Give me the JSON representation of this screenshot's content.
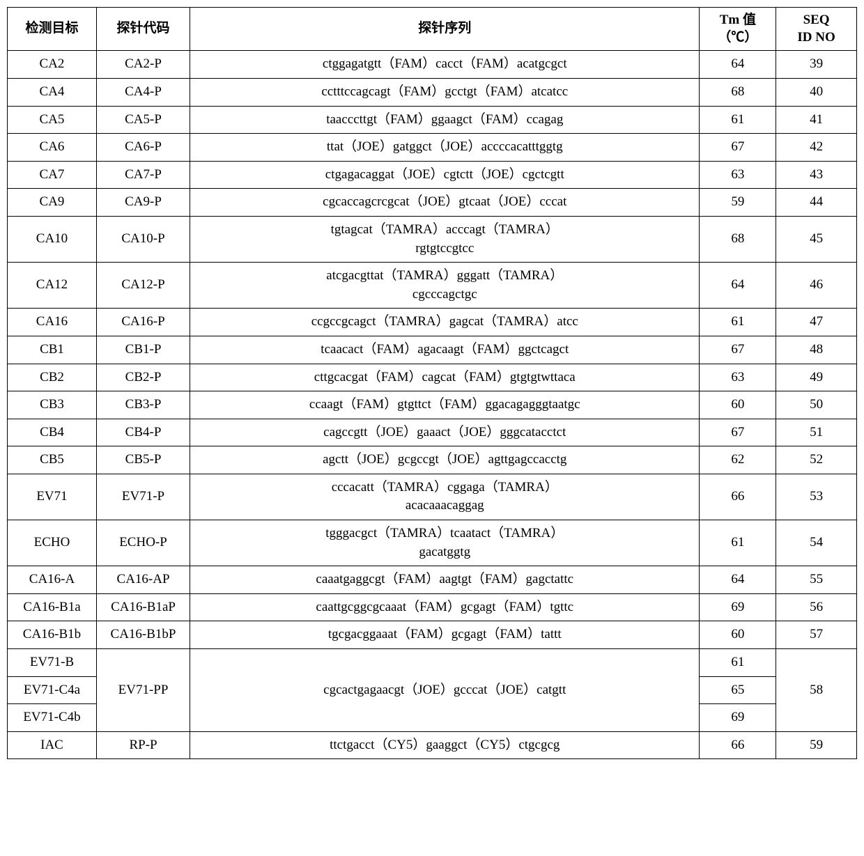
{
  "headers": {
    "target": "检测目标",
    "code": "探针代码",
    "sequence": "探针序列",
    "tm_line1": "Tm 值",
    "tm_line2": "（℃）",
    "seqid_line1": "SEQ",
    "seqid_line2": "ID NO"
  },
  "rows": [
    {
      "target": "CA2",
      "code": "CA2-P",
      "sequence": "ctggagatgtt（FAM）cacct（FAM）acatgcgct",
      "tm": "64",
      "seqid": "39"
    },
    {
      "target": "CA4",
      "code": "CA4-P",
      "sequence": "cctttccagcagt（FAM）gcctgt（FAM）atcatcc",
      "tm": "68",
      "seqid": "40"
    },
    {
      "target": "CA5",
      "code": "CA5-P",
      "sequence": "taacccttgt（FAM）ggaagct（FAM）ccagag",
      "tm": "61",
      "seqid": "41"
    },
    {
      "target": "CA6",
      "code": "CA6-P",
      "sequence": "ttat（JOE）gatggct（JOE）accccacatttggtg",
      "tm": "67",
      "seqid": "42"
    },
    {
      "target": "CA7",
      "code": "CA7-P",
      "sequence": "ctgagacaggat（JOE）cgtctt（JOE）cgctcgtt",
      "tm": "63",
      "seqid": "43"
    },
    {
      "target": "CA9",
      "code": "CA9-P",
      "sequence": "cgcaccagcrcgcat（JOE）gtcaat（JOE）cccat",
      "tm": "59",
      "seqid": "44"
    },
    {
      "target": "CA10",
      "code": "CA10-P",
      "sequence_line1": "tgtagcat（TAMRA）acccagt（TAMRA）",
      "sequence_line2": "rgtgtccgtcc",
      "tm": "68",
      "seqid": "45",
      "multiline": true
    },
    {
      "target": "CA12",
      "code": "CA12-P",
      "sequence_line1": "atcgacgttat（TAMRA）gggatt（TAMRA）",
      "sequence_line2": "cgcccagctgc",
      "tm": "64",
      "seqid": "46",
      "multiline": true
    },
    {
      "target": "CA16",
      "code": "CA16-P",
      "sequence": "ccgccgcagct（TAMRA）gagcat（TAMRA）atcc",
      "tm": "61",
      "seqid": "47"
    },
    {
      "target": "CB1",
      "code": "CB1-P",
      "sequence": "tcaacact（FAM）agacaagt（FAM）ggctcagct",
      "tm": "67",
      "seqid": "48"
    },
    {
      "target": "CB2",
      "code": "CB2-P",
      "sequence": "cttgcacgat（FAM）cagcat（FAM）gtgtgtwttaca",
      "tm": "63",
      "seqid": "49"
    },
    {
      "target": "CB3",
      "code": "CB3-P",
      "sequence": "ccaagt（FAM）gtgttct（FAM）ggacagagggtaatgc",
      "tm": "60",
      "seqid": "50"
    },
    {
      "target": "CB4",
      "code": "CB4-P",
      "sequence": "cagccgtt（JOE）gaaact（JOE）gggcatacctct",
      "tm": "67",
      "seqid": "51"
    },
    {
      "target": "CB5",
      "code": "CB5-P",
      "sequence": "agctt（JOE）gcgccgt（JOE）agttgagccacctg",
      "tm": "62",
      "seqid": "52"
    },
    {
      "target": "EV71",
      "code": "EV71-P",
      "sequence_line1": "cccacatt（TAMRA）cggaga（TAMRA）",
      "sequence_line2": "acacaaacaggag",
      "tm": "66",
      "seqid": "53",
      "multiline": true
    },
    {
      "target": "ECHO",
      "code": "ECHO-P",
      "sequence_line1": "tgggacgct（TAMRA）tcaatact（TAMRA）",
      "sequence_line2": "gacatggtg",
      "tm": "61",
      "seqid": "54",
      "multiline": true
    },
    {
      "target": "CA16-A",
      "code": "CA16-AP",
      "sequence": "caaatgaggcgt（FAM）aagtgt（FAM）gagctattc",
      "tm": "64",
      "seqid": "55"
    },
    {
      "target": "CA16-B1a",
      "code": "CA16-B1aP",
      "sequence": "caattgcggcgcaaat（FAM）gcgagt（FAM）tgttc",
      "tm": "69",
      "seqid": "56"
    },
    {
      "target": "CA16-B1b",
      "code": "CA16-B1bP",
      "sequence": "tgcgacggaaat（FAM）gcgagt（FAM）tattt",
      "tm": "60",
      "seqid": "57"
    }
  ],
  "ev71_group": {
    "code": "EV71-PP",
    "sequence": "cgcactgagaacgt（JOE）gcccat（JOE）catgtt",
    "seqid": "58",
    "targets": [
      {
        "target": "EV71-B",
        "tm": "61"
      },
      {
        "target": "EV71-C4a",
        "tm": "65"
      },
      {
        "target": "EV71-C4b",
        "tm": "69"
      }
    ]
  },
  "iac_row": {
    "target": "IAC",
    "code": "RP-P",
    "sequence": "ttctgacct（CY5）gaaggct（CY5）ctgcgcg",
    "tm": "66",
    "seqid": "59"
  }
}
